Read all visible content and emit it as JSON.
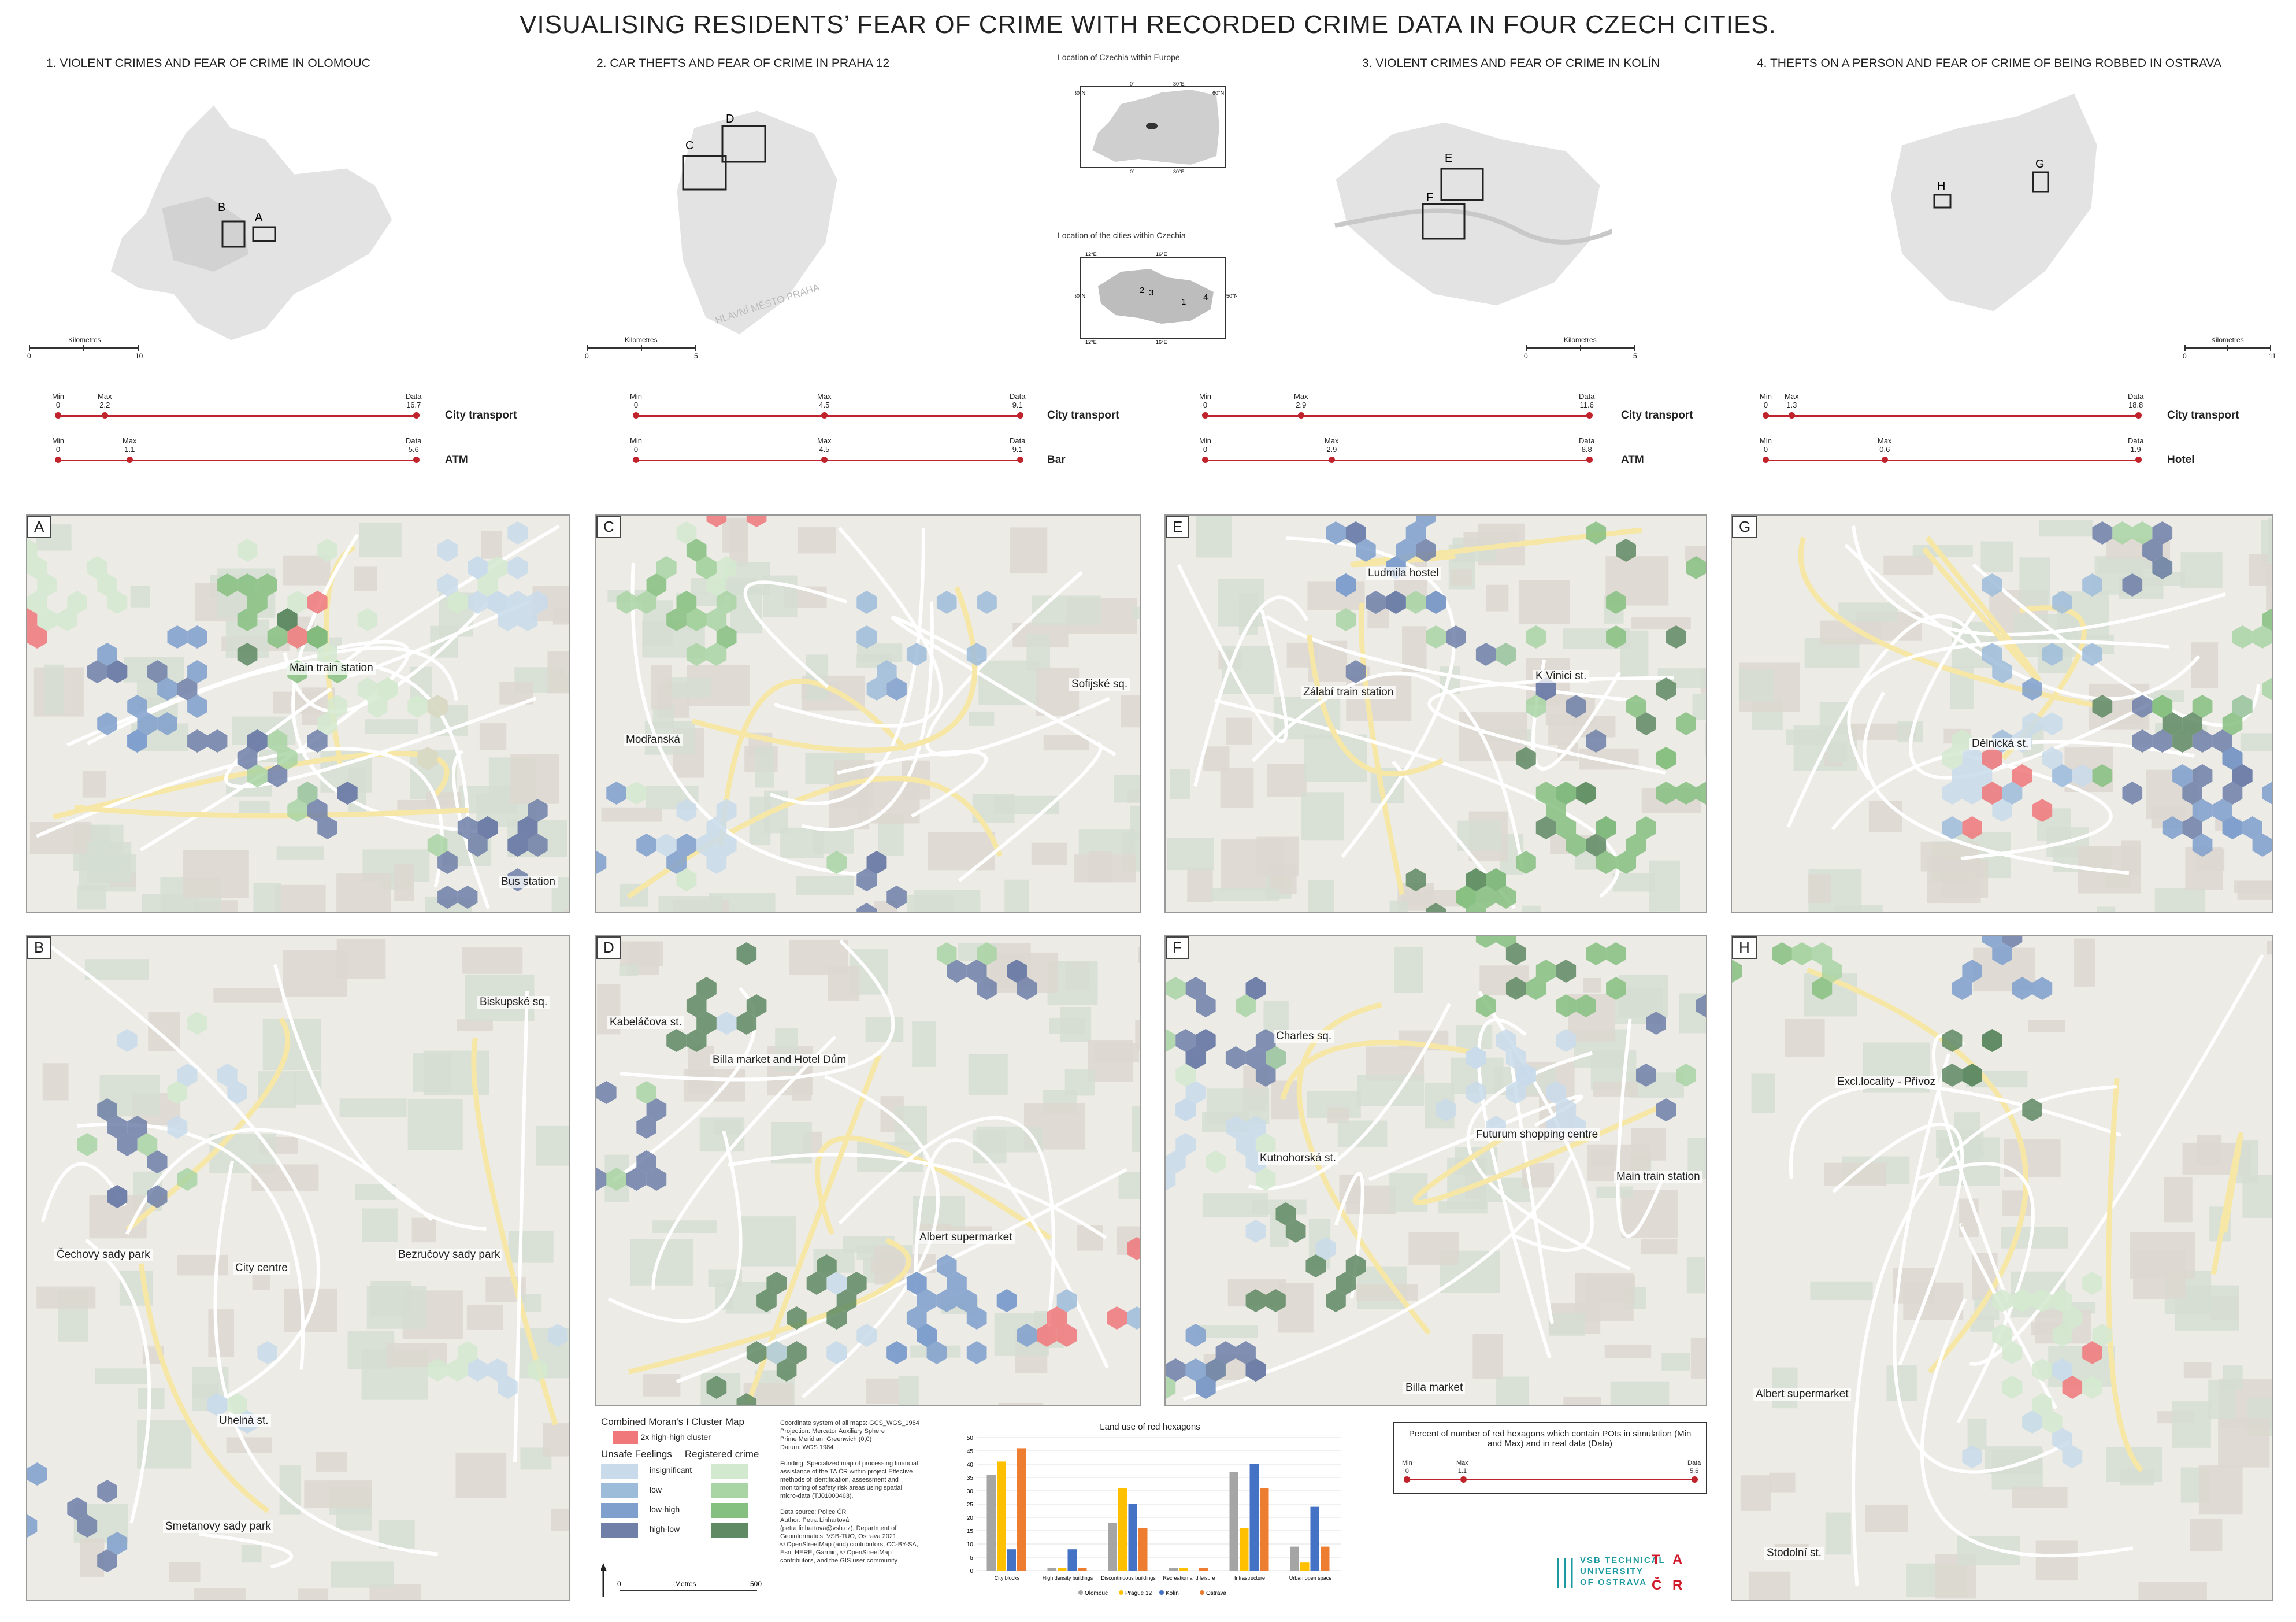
{
  "title": "VISUALISING RESIDENTS’ FEAR OF CRIME WITH RECORDED CRIME DATA IN FOUR CZECH CITIES.",
  "sections": [
    {
      "title": "1. VIOLENT CRIMES AND FEAR OF CRIME IN OLOMOUC",
      "scale": {
        "unit": "Kilometres",
        "ticks": [
          "0",
          "10"
        ]
      },
      "boxes": [
        "A",
        "B"
      ],
      "poi": [
        {
          "name": "City transport",
          "min": "0",
          "max": "2.2",
          "data": "16.7",
          "max_frac": 0.13
        },
        {
          "name": "ATM",
          "min": "0",
          "max": "1.1",
          "data": "5.6",
          "max_frac": 0.2
        }
      ]
    },
    {
      "title": "2. CAR THEFTS AND FEAR OF CRIME IN PRAHA 12",
      "scale": {
        "unit": "Kilometres",
        "ticks": [
          "0",
          "5"
        ]
      },
      "boxes": [
        "C",
        "D"
      ],
      "map_text": "HLAVNÍ MĚSTO PRAHA",
      "poi": [
        {
          "name": "City transport",
          "min": "0",
          "max": "4.5",
          "data": "9.1",
          "max_frac": 0.49
        },
        {
          "name": "Bar",
          "min": "0",
          "max": "4.5",
          "data": "9.1",
          "max_frac": 0.49
        }
      ]
    },
    {
      "title": "3. VIOLENT CRIMES AND FEAR OF CRIME IN KOLÍN",
      "scale": {
        "unit": "Kilometres",
        "ticks": [
          "0",
          "5"
        ]
      },
      "boxes": [
        "E",
        "F"
      ],
      "poi": [
        {
          "name": "City transport",
          "min": "0",
          "max": "2.9",
          "data": "11.6",
          "max_frac": 0.25
        },
        {
          "name": "ATM",
          "min": "0",
          "max": "2.9",
          "data": "8.8",
          "max_frac": 0.33
        }
      ]
    },
    {
      "title": "4. THEFTS ON A PERSON AND FEAR OF CRIME OF BEING ROBBED IN OSTRAVA",
      "scale": {
        "unit": "Kilometres",
        "ticks": [
          "0",
          "11"
        ]
      },
      "boxes": [
        "H",
        "G"
      ],
      "poi": [
        {
          "name": "City transport",
          "min": "0",
          "max": "1.3",
          "data": "18.8",
          "max_frac": 0.07
        },
        {
          "name": "Hotel",
          "min": "0",
          "max": "0.6",
          "data": "1.9",
          "max_frac": 0.32
        }
      ]
    }
  ],
  "locator": {
    "europe_title": "Location of Czechia within Europe",
    "czechia_title": "Location of the cities within Czechia",
    "europe_ticks": [
      "60°N",
      "60°N",
      "0°",
      "30°E",
      "0°",
      "30°E"
    ],
    "czechia_ticks": [
      "12°E",
      "16°E",
      "50°N",
      "50°N",
      "12°E",
      "16°E"
    ],
    "city_numbers": [
      "2",
      "3",
      "1",
      "4"
    ]
  },
  "panels": [
    {
      "label": "A",
      "places": [
        "Main train station",
        "Bus station"
      ]
    },
    {
      "label": "C",
      "places": [
        "Modřanská",
        "Sofijské sq."
      ]
    },
    {
      "label": "E",
      "places": [
        "Ludmila hostel",
        "Zálabí train station",
        "K Vinici st."
      ]
    },
    {
      "label": "G",
      "places": [
        "Dělnická st."
      ]
    },
    {
      "label": "B",
      "places": [
        "Biskupské sq.",
        "Čechovy sady park",
        "City centre",
        "Bezručovy sady park",
        "Uhelná st.",
        "Smetanovy sady park"
      ]
    },
    {
      "label": "D",
      "places": [
        "Kabeláčova st.",
        "Billa market and Hotel Dům",
        "Albert supermarket"
      ]
    },
    {
      "label": "F",
      "places": [
        "Charles sq.",
        "Futurum shopping centre",
        "Kutnohorská st.",
        "Main train station",
        "Billa market"
      ]
    },
    {
      "label": "H",
      "places": [
        "Excl.locality - Přívoz",
        "Albert supermarket",
        "Stodolní st."
      ]
    }
  ],
  "legend": {
    "title": "Combined Moran's I Cluster Map",
    "hh_label": "2x high-high cluster",
    "col1": "Unsafe Feelings",
    "col2": "Registered crime",
    "rows": [
      "insignificant",
      "low",
      "low-high",
      "high-low"
    ],
    "scale_unit": "Metres",
    "scale_ticks": [
      "0",
      "500"
    ],
    "colors": {
      "hh": "#f0777a",
      "unsafe": [
        "#c9dbea",
        "#9dbcda",
        "#7f9fcc",
        "#6f7fa8"
      ],
      "crime": [
        "#d3e9cf",
        "#a9d4a3",
        "#86c080",
        "#5f8a63"
      ]
    }
  },
  "metadata": [
    "Coordinate system of all maps: GCS_WGS_1984",
    "Projection: Mercator Auxiliary Sphere",
    "Prime Meridian: Greenwich (0,0)",
    "Datum: WGS 1984",
    "",
    "Funding: Specialized map of processing financial",
    "assistance of the TA ČR within project Effective",
    "methods of identification, assessment and",
    "monitoring of safety risk areas using spatial",
    "micro-data (TJ01000463).",
    "",
    "Data source: Police ČR",
    "Author: Petra Linhartová",
    "(petra.linhartova@vsb.cz), Department of",
    "Geoinformatics, VSB-TUO, Ostrava 2021",
    "© OpenStreetMap (and) contributors, CC-BY-SA,",
    "Esri, HERE, Garmin, © OpenStreetMap",
    "contributors, and the GIS user community"
  ],
  "chart_data": {
    "type": "bar",
    "title": "Land use of red hexagons",
    "categories": [
      "City blocks",
      "High density buildings",
      "Discontinuous buildings",
      "Recreation and leisure",
      "Infrastructure",
      "Urban open space"
    ],
    "ylim": [
      0,
      50
    ],
    "yticks": [
      "0",
      "5",
      "10",
      "15",
      "20",
      "25",
      "30",
      "35",
      "40",
      "45",
      "50"
    ],
    "series": [
      {
        "name": "Olomouc",
        "color": "#a5a5a5",
        "values": [
          36,
          1,
          18,
          1,
          37,
          9
        ]
      },
      {
        "name": "Prague 12",
        "color": "#ffc000",
        "values": [
          41,
          1,
          31,
          1,
          16,
          3
        ]
      },
      {
        "name": "Kolín",
        "color": "#4472c4",
        "values": [
          8,
          8,
          25,
          0,
          40,
          24
        ]
      },
      {
        "name": "Ostrava",
        "color": "#ed7d31",
        "values": [
          46,
          1,
          16,
          1,
          31,
          9
        ]
      }
    ]
  },
  "red_hex_legend": {
    "title": "Percent of number of red hexagons which contain POIs in simulation (Min and Max) and in real data (Data)",
    "min": "Min\n0",
    "max": "Max\n1.1",
    "data": "Data\n5.6"
  },
  "logos": {
    "vsb": [
      "VSB TECHNICAL",
      "UNIVERSITY",
      "OF OSTRAVA"
    ],
    "tacr": [
      "T",
      "A",
      "Č",
      "R"
    ]
  }
}
